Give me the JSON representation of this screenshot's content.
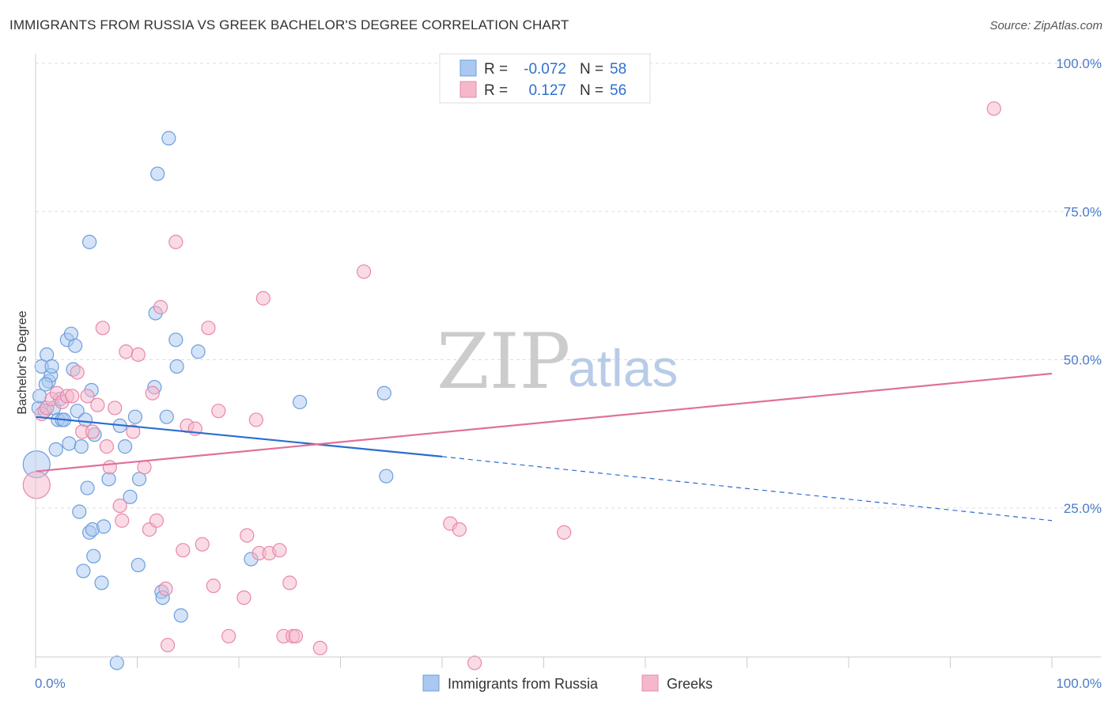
{
  "header": {
    "title": "IMMIGRANTS FROM RUSSIA VS GREEK BACHELOR'S DEGREE CORRELATION CHART",
    "source": "Source: ZipAtlas.com"
  },
  "watermark": {
    "zip": "ZIP",
    "atlas": "atlas"
  },
  "colors": {
    "blue_fill": "#aac8f0",
    "blue_stroke": "#6d9ede",
    "blue_line": "#2a6dd0",
    "pink_fill": "#f5b8cb",
    "pink_stroke": "#e888a8",
    "pink_line": "#e0709a",
    "grid": "#dddddd"
  },
  "legend_top": {
    "rows": [
      {
        "r_label": "R =",
        "r_value": "-0.072",
        "n_label": "N =",
        "n_value": "58"
      },
      {
        "r_label": "R =",
        "r_value": "0.127",
        "n_label": "N =",
        "n_value": "56"
      }
    ]
  },
  "chart_data": {
    "type": "scatter",
    "title": "IMMIGRANTS FROM RUSSIA VS GREEK BACHELOR'S DEGREE CORRELATION CHART",
    "xlabel": "",
    "ylabel": "Bachelor's Degree",
    "xlim": [
      0,
      100
    ],
    "ylim": [
      0,
      100
    ],
    "x_tick_labels": [
      "0.0%",
      "100.0%"
    ],
    "y_tick_labels": [
      "25.0%",
      "50.0%",
      "75.0%",
      "100.0%"
    ],
    "y_ticks": [
      25,
      50,
      75,
      100
    ],
    "grid": true,
    "legend": [
      "Immigrants from Russia",
      "Greeks"
    ],
    "series": [
      {
        "name": "Immigrants from Russia",
        "r": -0.072,
        "n": 58,
        "trend": {
          "x0": 0,
          "y0": 42.5,
          "x1": 40,
          "y1": 35.8,
          "dash_to_x": 100,
          "dash_to_y": 25.0
        },
        "points": [
          {
            "x": 0.1,
            "y": 34.5,
            "big": true
          },
          {
            "x": 0.3,
            "y": 44
          },
          {
            "x": 0.4,
            "y": 46
          },
          {
            "x": 0.6,
            "y": 51
          },
          {
            "x": 0.9,
            "y": 43.5
          },
          {
            "x": 1.1,
            "y": 53
          },
          {
            "x": 1.3,
            "y": 48.5
          },
          {
            "x": 1.5,
            "y": 49.5
          },
          {
            "x": 1.6,
            "y": 51
          },
          {
            "x": 1.8,
            "y": 44
          },
          {
            "x": 2.0,
            "y": 37
          },
          {
            "x": 2.2,
            "y": 42
          },
          {
            "x": 2.4,
            "y": 45.5
          },
          {
            "x": 2.6,
            "y": 42
          },
          {
            "x": 2.8,
            "y": 42
          },
          {
            "x": 3.1,
            "y": 55.5
          },
          {
            "x": 3.3,
            "y": 38
          },
          {
            "x": 3.5,
            "y": 56.5
          },
          {
            "x": 3.7,
            "y": 50.5
          },
          {
            "x": 3.9,
            "y": 54.5
          },
          {
            "x": 4.1,
            "y": 43.5
          },
          {
            "x": 4.3,
            "y": 26.5
          },
          {
            "x": 4.5,
            "y": 37.5
          },
          {
            "x": 4.7,
            "y": 16.5
          },
          {
            "x": 4.9,
            "y": 42
          },
          {
            "x": 5.1,
            "y": 30.5
          },
          {
            "x": 5.3,
            "y": 23
          },
          {
            "x": 5.3,
            "y": 72
          },
          {
            "x": 5.5,
            "y": 47
          },
          {
            "x": 5.6,
            "y": 23.5
          },
          {
            "x": 5.7,
            "y": 19
          },
          {
            "x": 5.8,
            "y": 39.5
          },
          {
            "x": 6.5,
            "y": 14.5
          },
          {
            "x": 6.7,
            "y": 24
          },
          {
            "x": 7.2,
            "y": 32
          },
          {
            "x": 8.0,
            "y": 1
          },
          {
            "x": 8.3,
            "y": 41
          },
          {
            "x": 8.8,
            "y": 37.5
          },
          {
            "x": 9.3,
            "y": 29
          },
          {
            "x": 9.8,
            "y": 42.5
          },
          {
            "x": 10.1,
            "y": 17.5
          },
          {
            "x": 10.2,
            "y": 32
          },
          {
            "x": 11.7,
            "y": 47.5
          },
          {
            "x": 11.8,
            "y": 60
          },
          {
            "x": 12.0,
            "y": 83.5
          },
          {
            "x": 12.4,
            "y": 13
          },
          {
            "x": 12.5,
            "y": 12
          },
          {
            "x": 12.9,
            "y": 42.5
          },
          {
            "x": 13.1,
            "y": 89.5
          },
          {
            "x": 13.8,
            "y": 55.5
          },
          {
            "x": 13.9,
            "y": 51
          },
          {
            "x": 14.3,
            "y": 9
          },
          {
            "x": 16.0,
            "y": 53.5
          },
          {
            "x": 21.2,
            "y": 18.5
          },
          {
            "x": 26.0,
            "y": 45
          },
          {
            "x": 34.3,
            "y": 46.5
          },
          {
            "x": 34.5,
            "y": 32.5
          },
          {
            "x": 1.0,
            "y": 48
          }
        ]
      },
      {
        "name": "Greeks",
        "r": 0.127,
        "n": 56,
        "trend": {
          "x0": 0,
          "y0": 33.3,
          "x1": 100,
          "y1": 49.8
        },
        "points": [
          {
            "x": 0.1,
            "y": 31,
            "big": true
          },
          {
            "x": 0.6,
            "y": 43
          },
          {
            "x": 1.1,
            "y": 44
          },
          {
            "x": 1.6,
            "y": 45.5
          },
          {
            "x": 2.1,
            "y": 46.5
          },
          {
            "x": 2.6,
            "y": 45
          },
          {
            "x": 3.1,
            "y": 46
          },
          {
            "x": 3.6,
            "y": 46
          },
          {
            "x": 4.1,
            "y": 50
          },
          {
            "x": 4.6,
            "y": 40
          },
          {
            "x": 5.1,
            "y": 46
          },
          {
            "x": 5.6,
            "y": 40
          },
          {
            "x": 6.1,
            "y": 44.5
          },
          {
            "x": 6.6,
            "y": 57.5
          },
          {
            "x": 7.0,
            "y": 37.5
          },
          {
            "x": 7.3,
            "y": 34
          },
          {
            "x": 7.8,
            "y": 44
          },
          {
            "x": 8.3,
            "y": 27.5
          },
          {
            "x": 8.5,
            "y": 25
          },
          {
            "x": 8.9,
            "y": 53.5
          },
          {
            "x": 9.6,
            "y": 40
          },
          {
            "x": 10.1,
            "y": 53
          },
          {
            "x": 10.7,
            "y": 34
          },
          {
            "x": 11.2,
            "y": 23.5
          },
          {
            "x": 11.5,
            "y": 46.5
          },
          {
            "x": 11.9,
            "y": 25
          },
          {
            "x": 12.3,
            "y": 61
          },
          {
            "x": 12.8,
            "y": 13.5
          },
          {
            "x": 13.0,
            "y": 4
          },
          {
            "x": 13.8,
            "y": 72
          },
          {
            "x": 14.5,
            "y": 20
          },
          {
            "x": 14.9,
            "y": 41
          },
          {
            "x": 15.7,
            "y": 40.5
          },
          {
            "x": 16.4,
            "y": 21
          },
          {
            "x": 17.0,
            "y": 57.5
          },
          {
            "x": 17.5,
            "y": 14
          },
          {
            "x": 18.0,
            "y": 43.5
          },
          {
            "x": 19.0,
            "y": 5.5
          },
          {
            "x": 20.5,
            "y": 12
          },
          {
            "x": 20.8,
            "y": 22.5
          },
          {
            "x": 21.7,
            "y": 42
          },
          {
            "x": 22.0,
            "y": 19.5
          },
          {
            "x": 22.4,
            "y": 62.5
          },
          {
            "x": 23.0,
            "y": 19.5
          },
          {
            "x": 24.0,
            "y": 20
          },
          {
            "x": 24.4,
            "y": 5.5
          },
          {
            "x": 25.0,
            "y": 14.5
          },
          {
            "x": 25.3,
            "y": 5.5
          },
          {
            "x": 25.6,
            "y": 5.5
          },
          {
            "x": 28.0,
            "y": 3.5
          },
          {
            "x": 32.3,
            "y": 67
          },
          {
            "x": 40.8,
            "y": 24.5
          },
          {
            "x": 41.7,
            "y": 23.5
          },
          {
            "x": 43.2,
            "y": 1
          },
          {
            "x": 52.0,
            "y": 23
          },
          {
            "x": 94.3,
            "y": 94.5
          }
        ]
      }
    ]
  }
}
